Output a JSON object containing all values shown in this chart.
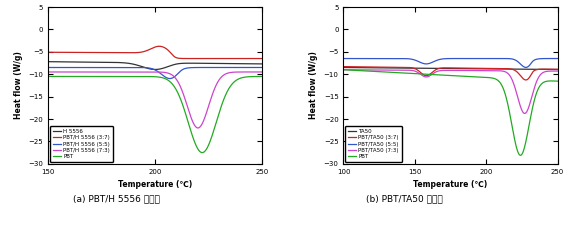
{
  "chart_a": {
    "title": "(a) PBT/H 5556 비율별",
    "xlabel": "Temperature (℃)",
    "ylabel": "Heat flow (W/g)",
    "xlim": [
      150,
      250
    ],
    "ylim": [
      -30,
      5
    ],
    "yticks": [
      5,
      0,
      -5,
      -10,
      -15,
      -20,
      -25,
      -30
    ],
    "xticks": [
      150,
      200,
      250
    ],
    "legend": [
      "H 5556",
      "PBT/H 5556 (3:7)",
      "PBT/H 5556 (5:5)",
      "PBT/H 5556 (7:3)",
      "PBT"
    ],
    "colors": [
      "#333333",
      "#cc2222",
      "#3355cc",
      "#cc44cc",
      "#22aa22"
    ]
  },
  "chart_b": {
    "title": "(b) PBT/TA50 비율별",
    "xlabel": "Temperature (℃)",
    "ylabel": "Heat flow (W/g)",
    "xlim": [
      100,
      250
    ],
    "ylim": [
      -30,
      5
    ],
    "yticks": [
      5,
      0,
      -5,
      -10,
      -15,
      -20,
      -25,
      -30
    ],
    "xticks": [
      100,
      150,
      200,
      250
    ],
    "legend": [
      "TA50",
      "PBT/TA50 (3:7)",
      "PBT/TA50 (5:5)",
      "PBT/TA50 (7:3)",
      "PBT"
    ],
    "colors": [
      "#333333",
      "#cc2222",
      "#3355cc",
      "#cc44cc",
      "#22aa22"
    ]
  }
}
